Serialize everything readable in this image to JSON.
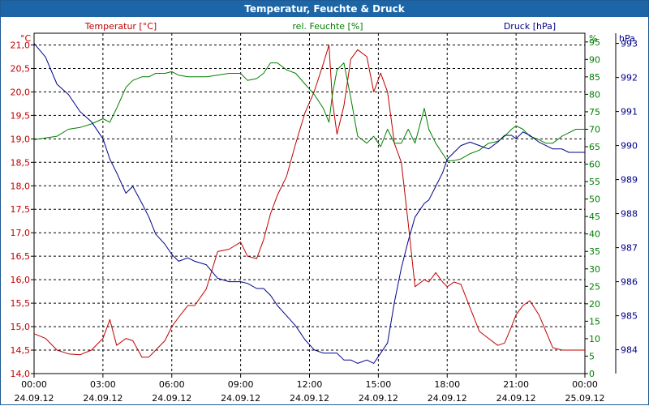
{
  "window_title": "Temperatur, Feuchte & Druck",
  "colors": {
    "temperature": "#c00000",
    "humidity": "#008000",
    "pressure": "#00008b",
    "grid": "#000000"
  },
  "chart_data": {
    "type": "line",
    "title": "Temperatur, Feuchte & Druck",
    "x_tick_times": [
      "00:00",
      "03:00",
      "06:00",
      "09:00",
      "12:00",
      "15:00",
      "18:00",
      "21:00",
      "00:00"
    ],
    "x_tick_dates": [
      "24.09.12",
      "24.09.12",
      "24.09.12",
      "24.09.12",
      "24.09.12",
      "24.09.12",
      "24.09.12",
      "24.09.12",
      "25.09.12"
    ],
    "xlim": [
      0,
      24
    ],
    "axes": {
      "temperature": {
        "unit": "°C",
        "label": "Temperatur [°C]",
        "ylim": [
          14.0,
          21.25
        ],
        "ticks": [
          "14,0",
          "14,5",
          "15,0",
          "15,5",
          "16,0",
          "16,5",
          "17,0",
          "17,5",
          "18,0",
          "18,5",
          "19,0",
          "19,5",
          "20,0",
          "20,5",
          "21,0"
        ],
        "tick_values": [
          14.0,
          14.5,
          15.0,
          15.5,
          16.0,
          16.5,
          17.0,
          17.5,
          18.0,
          18.5,
          19.0,
          19.5,
          20.0,
          20.5,
          21.0
        ]
      },
      "humidity": {
        "unit": "%",
        "label": "rel. Feuchte [%]",
        "ylim": [
          0,
          97.5
        ],
        "ticks": [
          "0",
          "5",
          "10",
          "15",
          "20",
          "25",
          "30",
          "35",
          "40",
          "45",
          "50",
          "55",
          "60",
          "65",
          "70",
          "75",
          "80",
          "85",
          "90",
          "95"
        ],
        "tick_values": [
          0,
          5,
          10,
          15,
          20,
          25,
          30,
          35,
          40,
          45,
          50,
          55,
          60,
          65,
          70,
          75,
          80,
          85,
          90,
          95
        ]
      },
      "pressure": {
        "unit": "hPa",
        "label": "Druck [hPa]",
        "ylim": [
          983.3,
          993.3
        ],
        "ticks": [
          "984",
          "985",
          "986",
          "987",
          "988",
          "989",
          "990",
          "991",
          "992",
          "993"
        ],
        "tick_values": [
          984,
          985,
          986,
          987,
          988,
          989,
          990,
          991,
          992,
          993
        ]
      }
    },
    "series": [
      {
        "name": "Temperatur [°C]",
        "axis": "temperature",
        "x": [
          0,
          0.5,
          1,
          1.5,
          2,
          2.5,
          3,
          3.3,
          3.6,
          4,
          4.3,
          4.7,
          5,
          5.3,
          5.7,
          6,
          6.3,
          6.7,
          7,
          7.5,
          8,
          8.5,
          9,
          9.3,
          9.7,
          10,
          10.3,
          10.6,
          11,
          11.4,
          11.8,
          12.2,
          12.6,
          12.85,
          13,
          13.2,
          13.5,
          13.8,
          14.1,
          14.5,
          14.8,
          15.1,
          15.4,
          15.7,
          16,
          16.3,
          16.6,
          17,
          17.2,
          17.5,
          17.8,
          18,
          18.3,
          18.6,
          19,
          19.4,
          19.8,
          20.2,
          20.5,
          20.8,
          21,
          21.3,
          21.6,
          22,
          22.3,
          22.6,
          23,
          23.3,
          23.6,
          24
        ],
        "values": [
          14.85,
          14.75,
          14.5,
          14.42,
          14.4,
          14.5,
          14.75,
          15.15,
          14.6,
          14.75,
          14.7,
          14.35,
          14.35,
          14.5,
          14.7,
          15.0,
          15.2,
          15.45,
          15.45,
          15.8,
          16.6,
          16.65,
          16.8,
          16.5,
          16.45,
          16.85,
          17.4,
          17.8,
          18.2,
          18.9,
          19.55,
          20.0,
          20.6,
          21.0,
          19.8,
          19.1,
          19.7,
          20.7,
          20.9,
          20.75,
          20.0,
          20.4,
          20.0,
          18.9,
          18.5,
          17.2,
          15.85,
          16.0,
          15.95,
          16.15,
          15.95,
          15.85,
          15.95,
          15.9,
          15.4,
          14.9,
          14.75,
          14.6,
          14.65,
          15.0,
          15.25,
          15.45,
          15.55,
          15.25,
          14.9,
          14.55,
          14.5,
          14.5,
          14.5,
          14.5
        ]
      },
      {
        "name": "rel. Feuchte [%]",
        "axis": "humidity",
        "x": [
          0,
          0.5,
          1,
          1.5,
          2,
          2.5,
          3,
          3.3,
          3.6,
          4,
          4.3,
          4.7,
          5,
          5.3,
          5.7,
          6,
          6.3,
          6.7,
          7,
          7.5,
          8,
          8.5,
          9,
          9.3,
          9.7,
          10,
          10.3,
          10.6,
          11,
          11.4,
          11.8,
          12.2,
          12.6,
          12.85,
          13,
          13.2,
          13.5,
          13.8,
          14.1,
          14.5,
          14.8,
          15.1,
          15.4,
          15.7,
          16,
          16.3,
          16.6,
          17,
          17.2,
          17.5,
          17.8,
          18,
          18.3,
          18.6,
          19,
          19.4,
          19.8,
          20.2,
          20.5,
          20.8,
          21,
          21.3,
          21.6,
          22,
          22.3,
          22.6,
          23,
          23.3,
          23.6,
          24
        ],
        "values": [
          67,
          67.5,
          68,
          70,
          70.5,
          71.5,
          73,
          72,
          76,
          82,
          84,
          85,
          85,
          86,
          86,
          86.5,
          85.5,
          85,
          85,
          85,
          85.5,
          86,
          86,
          84,
          84.5,
          86,
          89,
          89,
          87,
          86,
          83,
          80,
          76,
          72,
          80,
          87,
          89,
          79,
          68,
          66,
          68,
          65,
          70,
          66,
          66,
          70,
          66,
          76,
          70,
          66,
          63,
          61,
          61,
          61.5,
          63,
          64,
          66,
          66.5,
          68,
          70,
          71,
          70,
          68,
          67,
          66,
          66,
          68,
          69,
          70,
          70
        ]
      },
      {
        "name": "Druck [hPa]",
        "axis": "pressure",
        "x": [
          0,
          0.5,
          1,
          1.5,
          2,
          2.5,
          3,
          3.3,
          3.6,
          4,
          4.3,
          4.7,
          5,
          5.3,
          5.7,
          6,
          6.3,
          6.7,
          7,
          7.5,
          8,
          8.5,
          9,
          9.3,
          9.7,
          10,
          10.3,
          10.6,
          11,
          11.4,
          11.8,
          12.2,
          12.6,
          12.85,
          13,
          13.2,
          13.5,
          13.8,
          14.1,
          14.5,
          14.8,
          15.1,
          15.4,
          15.7,
          16,
          16.3,
          16.6,
          17,
          17.2,
          17.5,
          17.8,
          18,
          18.3,
          18.6,
          19,
          19.4,
          19.8,
          20.2,
          20.5,
          20.8,
          21,
          21.3,
          21.6,
          22,
          22.3,
          22.6,
          23,
          23.3,
          23.6,
          24
        ],
        "values": [
          993,
          992.6,
          991.8,
          991.5,
          991.0,
          990.7,
          990.2,
          989.6,
          989.2,
          988.6,
          988.8,
          988.3,
          987.9,
          987.4,
          987.1,
          986.8,
          986.6,
          986.7,
          986.6,
          986.5,
          986.1,
          986.0,
          986.0,
          985.95,
          985.8,
          985.8,
          985.6,
          985.3,
          985.0,
          984.7,
          984.3,
          984.0,
          983.9,
          983.9,
          983.9,
          983.9,
          983.7,
          983.7,
          983.6,
          983.7,
          983.6,
          983.9,
          984.2,
          985.4,
          986.4,
          987.2,
          987.9,
          988.3,
          988.4,
          988.8,
          989.2,
          989.6,
          989.8,
          990.0,
          990.1,
          990.0,
          989.9,
          990.1,
          990.3,
          990.3,
          990.2,
          990.4,
          990.3,
          990.1,
          990.0,
          989.9,
          989.9,
          989.8,
          989.8,
          989.8
        ]
      }
    ]
  }
}
